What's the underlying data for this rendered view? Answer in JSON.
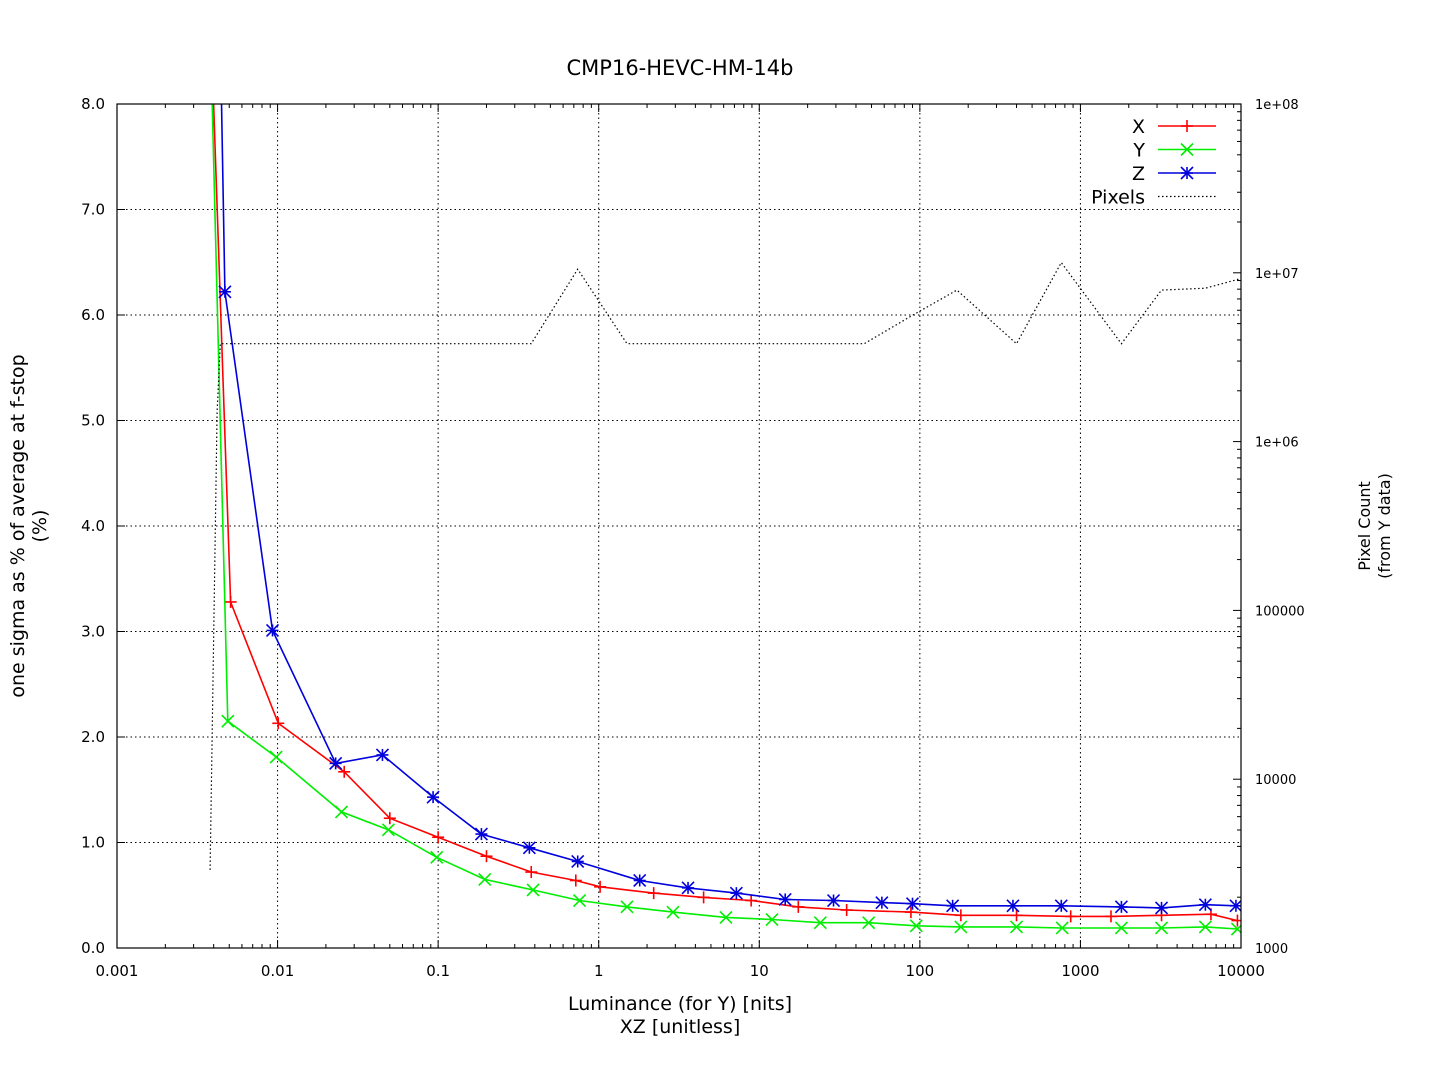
{
  "chart_data": {
    "type": "line",
    "title": "CMP16-HEVC-HM-14b",
    "xlabel_lines": [
      "Luminance (for Y) [nits]",
      "XZ [unitless]"
    ],
    "ylabel_lines": [
      "one sigma as % of average at f-stop",
      "(%)"
    ],
    "y2label_lines": [
      "Pixel Count",
      "(from Y data)"
    ],
    "x_scale": "log",
    "xlim": [
      0.001,
      10000
    ],
    "ylim": [
      0,
      8
    ],
    "y2_scale": "log",
    "y2lim": [
      1000,
      100000000
    ],
    "x_ticks": [
      "0.001",
      "0.01",
      "0.1",
      "1",
      "10",
      "100",
      "1000",
      "10000"
    ],
    "y_ticks": [
      "0.0",
      "1.0",
      "2.0",
      "3.0",
      "4.0",
      "5.0",
      "6.0",
      "7.0",
      "8.0"
    ],
    "y2_ticks": [
      "1000",
      "10000",
      "100000",
      "1e+06",
      "1e+07",
      "1e+08"
    ],
    "grid": true,
    "legend_position": "top-right",
    "series": [
      {
        "name": "X",
        "color": "#ff0000",
        "marker": "plus",
        "axis": "y1",
        "points": [
          [
            0.0037,
            9.5
          ],
          [
            0.0051,
            3.28
          ],
          [
            0.0101,
            2.13
          ],
          [
            0.026,
            1.67
          ],
          [
            0.05,
            1.23
          ],
          [
            0.1,
            1.05
          ],
          [
            0.2,
            0.87
          ],
          [
            0.38,
            0.72
          ],
          [
            0.72,
            0.64
          ],
          [
            1.02,
            0.58
          ],
          [
            2.2,
            0.52
          ],
          [
            4.5,
            0.48
          ],
          [
            8.9,
            0.45
          ],
          [
            17.5,
            0.39
          ],
          [
            35,
            0.36
          ],
          [
            88,
            0.34
          ],
          [
            180,
            0.31
          ],
          [
            400,
            0.31
          ],
          [
            870,
            0.3
          ],
          [
            1550,
            0.3
          ],
          [
            3200,
            0.31
          ],
          [
            6500,
            0.32
          ],
          [
            9500,
            0.26
          ]
        ]
      },
      {
        "name": "Y",
        "color": "#00ee00",
        "marker": "cross",
        "axis": "y1",
        "points": [
          [
            0.0037,
            9.5
          ],
          [
            0.0049,
            2.15
          ],
          [
            0.0098,
            1.81
          ],
          [
            0.025,
            1.29
          ],
          [
            0.049,
            1.12
          ],
          [
            0.098,
            0.86
          ],
          [
            0.195,
            0.65
          ],
          [
            0.39,
            0.55
          ],
          [
            0.76,
            0.45
          ],
          [
            1.5,
            0.39
          ],
          [
            2.9,
            0.34
          ],
          [
            6.2,
            0.29
          ],
          [
            12,
            0.27
          ],
          [
            24,
            0.24
          ],
          [
            48,
            0.24
          ],
          [
            95,
            0.21
          ],
          [
            180,
            0.2
          ],
          [
            400,
            0.2
          ],
          [
            770,
            0.19
          ],
          [
            1800,
            0.19
          ],
          [
            3200,
            0.19
          ],
          [
            6000,
            0.2
          ],
          [
            9500,
            0.18
          ]
        ]
      },
      {
        "name": "Z",
        "color": "#0000dd",
        "marker": "star",
        "axis": "y1",
        "points": [
          [
            0.0043,
            9.5
          ],
          [
            0.0047,
            6.22
          ],
          [
            0.0093,
            3.01
          ],
          [
            0.023,
            1.75
          ],
          [
            0.045,
            1.83
          ],
          [
            0.093,
            1.43
          ],
          [
            0.186,
            1.08
          ],
          [
            0.37,
            0.95
          ],
          [
            0.74,
            0.82
          ],
          [
            1.8,
            0.64
          ],
          [
            3.6,
            0.57
          ],
          [
            7.2,
            0.52
          ],
          [
            14.5,
            0.46
          ],
          [
            29,
            0.45
          ],
          [
            58,
            0.43
          ],
          [
            90,
            0.42
          ],
          [
            160,
            0.4
          ],
          [
            380,
            0.4
          ],
          [
            760,
            0.4
          ],
          [
            1800,
            0.39
          ],
          [
            3200,
            0.38
          ],
          [
            6000,
            0.41
          ],
          [
            9300,
            0.4
          ]
        ]
      },
      {
        "name": "Pixels",
        "color": "#000000",
        "style": "dotted",
        "axis": "y2",
        "points": [
          [
            0.0038,
            2900
          ],
          [
            0.0042,
            1500000
          ],
          [
            0.0044,
            3800000
          ],
          [
            0.38,
            3800000
          ],
          [
            0.74,
            10500000
          ],
          [
            1.5,
            3800000
          ],
          [
            45,
            3800000
          ],
          [
            90,
            5600000
          ],
          [
            170,
            7900000
          ],
          [
            400,
            3800000
          ],
          [
            760,
            11500000
          ],
          [
            1800,
            3800000
          ],
          [
            3200,
            7900000
          ],
          [
            6000,
            8100000
          ],
          [
            9800,
            9200000
          ]
        ]
      }
    ]
  }
}
